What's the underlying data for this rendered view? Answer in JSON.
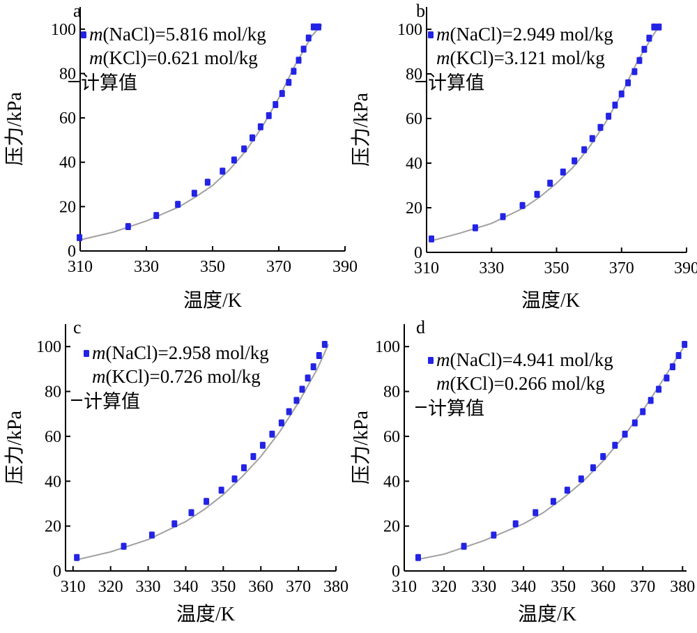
{
  "chart_data": [
    {
      "type": "scatter",
      "panel_label": "a",
      "xlabel": "温度/K",
      "ylabel": "压力/kPa",
      "xlim": [
        310,
        390
      ],
      "ylim": [
        0,
        110
      ],
      "xticks": [
        310,
        330,
        350,
        370,
        390
      ],
      "yticks": [
        0,
        20,
        40,
        60,
        80,
        100
      ],
      "legend": {
        "placement": "top-left",
        "marker_prefix": "m",
        "marker_line1": "(NaCl)=5.816 mol/kg",
        "marker_line2_prefix": "m",
        "marker_line2": "(KCl)=0.621 mol/kg",
        "line_label": "计算值"
      },
      "series": [
        {
          "x": [
            309.8,
            324.5,
            333.0,
            339.5,
            344.5,
            348.5,
            353.0,
            356.5,
            359.5,
            362.0,
            364.5,
            367.0,
            369.0,
            371.0,
            373.0,
            374.5,
            376.0,
            377.5,
            379.0,
            380.5,
            382.0
          ],
          "y": [
            6,
            11,
            16,
            21,
            26,
            31,
            36,
            41,
            46,
            51,
            56,
            61,
            66,
            71,
            76,
            81,
            86,
            91,
            96,
            101,
            101
          ]
        }
      ],
      "calc_line": {
        "x": [
          310,
          320,
          330,
          340,
          345,
          350,
          355,
          360,
          365,
          370,
          375,
          380,
          383
        ],
        "y": [
          5,
          8.5,
          13.5,
          20,
          24.5,
          29.5,
          36.5,
          45,
          56,
          69,
          84,
          97,
          102
        ]
      }
    },
    {
      "type": "scatter",
      "panel_label": "b",
      "xlabel": "温度/K",
      "ylabel": "压力/kPa",
      "xlim": [
        310,
        390
      ],
      "ylim": [
        0,
        110
      ],
      "xticks": [
        310,
        330,
        350,
        370,
        390
      ],
      "yticks": [
        0,
        20,
        40,
        60,
        80,
        100
      ],
      "legend": {
        "placement": "top-left",
        "marker_prefix": "m",
        "marker_line1": "(NaCl)=2.949 mol/kg",
        "marker_line2_prefix": "m",
        "marker_line2": "(KCl)=3.121 mol/kg",
        "line_label": "计算值"
      },
      "series": [
        {
          "x": [
            311.5,
            325.0,
            333.5,
            339.5,
            344.0,
            348.0,
            352.0,
            355.5,
            358.5,
            361.0,
            363.5,
            366.0,
            368.0,
            370.0,
            372.0,
            374.0,
            375.5,
            377.0,
            378.5,
            380.0,
            381.5
          ],
          "y": [
            6,
            11,
            16,
            21,
            26,
            31,
            36,
            41,
            46,
            51,
            56,
            61,
            66,
            71,
            76,
            81,
            86,
            91,
            96,
            101,
            101
          ]
        }
      ],
      "calc_line": {
        "x": [
          311,
          320,
          330,
          340,
          345,
          350,
          355,
          360,
          365,
          370,
          375,
          380,
          382
        ],
        "y": [
          5,
          8.5,
          13,
          20,
          25,
          31,
          38,
          47,
          58,
          71,
          86,
          98,
          102
        ]
      }
    },
    {
      "type": "scatter",
      "panel_label": "c",
      "xlabel": "温度/K",
      "ylabel": "压力/kPa",
      "xlim": [
        308,
        380
      ],
      "ylim": [
        0,
        110
      ],
      "xticks": [
        310,
        320,
        330,
        340,
        350,
        360,
        370,
        380
      ],
      "yticks": [
        0,
        20,
        40,
        60,
        80,
        100
      ],
      "legend": {
        "placement": "top-left",
        "marker_prefix": "m",
        "marker_line1": "(NaCl)=2.958 mol/kg",
        "marker_line2_prefix": "m",
        "marker_line2": "(KCl)=0.726 mol/kg",
        "line_label": "计算值"
      },
      "series": [
        {
          "x": [
            311.0,
            323.5,
            331.0,
            337.0,
            341.5,
            345.5,
            349.5,
            353.0,
            355.5,
            358.0,
            360.5,
            363.0,
            365.5,
            367.5,
            369.5,
            371.0,
            372.5,
            374.0,
            375.5,
            377.0
          ],
          "y": [
            6,
            11,
            16,
            21,
            26,
            31,
            36,
            41,
            46,
            51,
            56,
            61,
            66,
            71,
            76,
            81,
            86,
            91,
            96,
            101
          ]
        }
      ],
      "calc_line": {
        "x": [
          311,
          320,
          330,
          340,
          345,
          350,
          355,
          360,
          365,
          370,
          375,
          378
        ],
        "y": [
          5,
          8.5,
          14,
          22,
          27.5,
          34,
          42,
          51,
          62,
          75,
          90,
          101
        ]
      }
    },
    {
      "type": "scatter",
      "panel_label": "d",
      "xlabel": "温度/K",
      "ylabel": "压力/kPa",
      "xlim": [
        310,
        381
      ],
      "ylim": [
        0,
        110
      ],
      "xticks": [
        310,
        320,
        330,
        340,
        350,
        360,
        370,
        380
      ],
      "yticks": [
        0,
        20,
        40,
        60,
        80,
        100
      ],
      "legend": {
        "placement": "top-left",
        "marker_prefix": "m",
        "marker_line1": "(NaCl)=4.941 mol/kg",
        "marker_line2_prefix": "m",
        "marker_line2": "(KCl)=0.266 mol/kg",
        "line_label": "计算值"
      },
      "series": [
        {
          "x": [
            313.5,
            325.0,
            332.5,
            338.0,
            343.0,
            347.5,
            351.0,
            354.5,
            357.5,
            360.0,
            363.0,
            365.5,
            368.0,
            370.0,
            372.0,
            374.0,
            376.0,
            377.5,
            379.0,
            380.5
          ],
          "y": [
            6,
            11,
            16,
            21,
            26,
            31,
            36,
            41,
            46,
            51,
            56,
            61,
            66,
            71,
            76,
            81,
            86,
            91,
            96,
            101
          ]
        }
      ],
      "calc_line": {
        "x": [
          313,
          320,
          330,
          340,
          345,
          350,
          355,
          360,
          365,
          370,
          375,
          380,
          381
        ],
        "y": [
          5,
          7.5,
          13.5,
          21,
          26,
          32.5,
          40,
          49,
          59.5,
          71.5,
          85,
          99,
          102
        ]
      }
    }
  ]
}
